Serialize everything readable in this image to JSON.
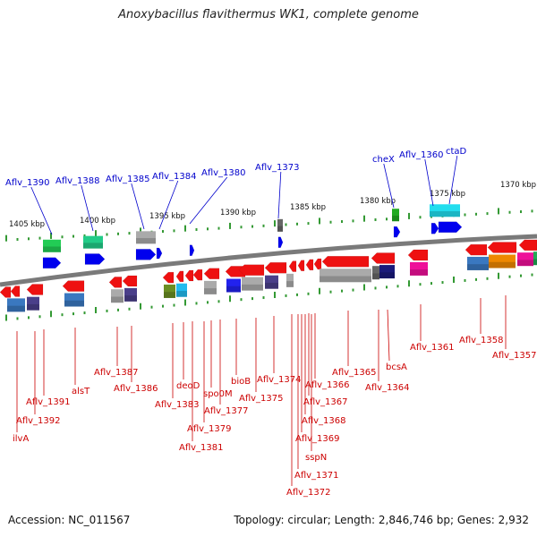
{
  "title": "Anoxybacillus flavithermus WK1, complete genome",
  "footer": {
    "accession": "Accession: NC_011567",
    "topology": "Topology: circular; Length: 2,846,746 bp; Genes: 2,932"
  },
  "colors": {
    "label_top": "#0000cc",
    "label_bottom": "#cc0000",
    "backbone": "#7a7a7a",
    "tick": "#339933"
  },
  "scale_labels": [
    "1405 kbp",
    "1400 kbp",
    "1395 kbp",
    "1390 kbp",
    "1385 kbp",
    "1380 kbp",
    "1375 kbp",
    "1370 kbp"
  ],
  "top_labels": [
    "Aflv_1390",
    "Aflv_1388",
    "Aflv_1385",
    "Aflv_1384",
    "Aflv_1380",
    "Aflv_1373",
    "cheX",
    "Aflv_1360",
    "ctaD"
  ],
  "bottom_labels": [
    "ilvA",
    "Aflv_1392",
    "Aflv_1391",
    "alsT",
    "Aflv_1387",
    "Aflv_1386",
    "Aflv_1383",
    "deoD",
    "Aflv_1381",
    "Aflv_1379",
    "spo0M",
    "Aflv_1377",
    "bioB",
    "Aflv_1375",
    "Aflv_1374",
    "sspN",
    "Aflv_1372",
    "Aflv_1371",
    "Aflv_1369",
    "Aflv_1368",
    "Aflv_1367",
    "Aflv_1366",
    "Aflv_1365",
    "Aflv_1364",
    "bcsA",
    "Aflv_1361",
    "Aflv_1358",
    "Aflv_1357"
  ]
}
